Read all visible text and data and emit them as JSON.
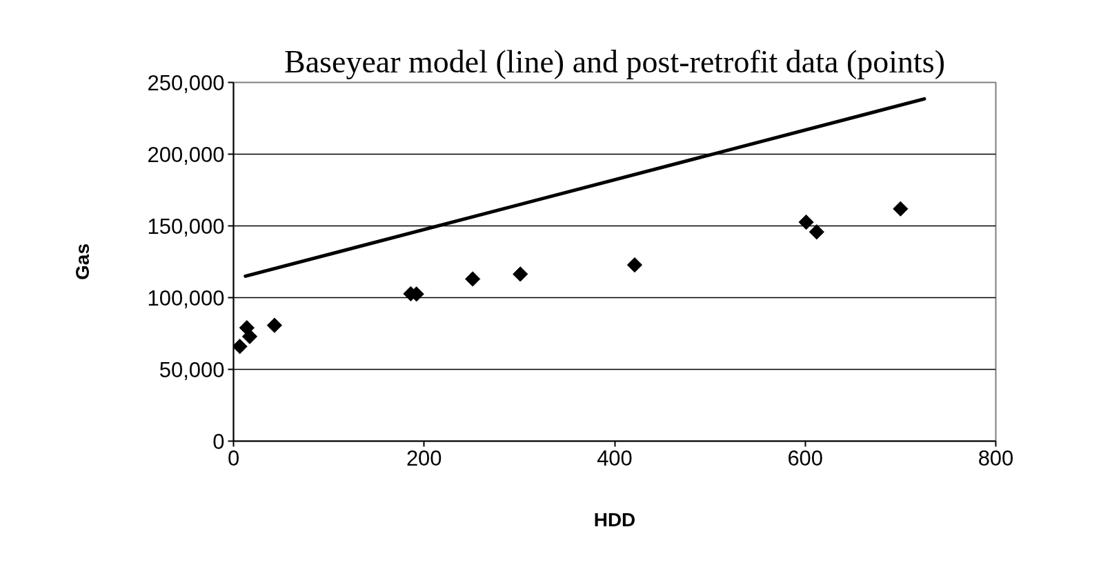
{
  "chart_data": {
    "type": "scatter",
    "title": "Baseyear model (line) and post-retrofit data (points)",
    "xlabel": "HDD",
    "ylabel": "Gas",
    "xlim": [
      0,
      800
    ],
    "xticks": [
      0,
      200,
      400,
      600,
      800
    ],
    "ylim": [
      0,
      250000
    ],
    "yticks": [
      {
        "value": 0,
        "label": "0"
      },
      {
        "value": 50000,
        "label": "50,000"
      },
      {
        "value": 100000,
        "label": "100,000"
      },
      {
        "value": 150000,
        "label": "150,000"
      },
      {
        "value": 200000,
        "label": "200,000"
      },
      {
        "value": 250000,
        "label": "250,000"
      }
    ],
    "grid": "y",
    "series": [
      {
        "type": "line",
        "color": "#000000",
        "x": [
          12.5,
          725
        ],
        "values": [
          115000,
          238500
        ],
        "marker": "none",
        "line_style": "solid"
      },
      {
        "color": "#000000",
        "x": [
          6.6,
          14,
          17,
          43,
          186,
          192,
          251,
          301,
          421,
          601,
          612,
          700
        ],
        "values": [
          66000,
          79000,
          72900,
          80700,
          102700,
          102500,
          113000,
          116400,
          122800,
          152600,
          145800,
          161900
        ],
        "marker": "diamond"
      }
    ]
  }
}
